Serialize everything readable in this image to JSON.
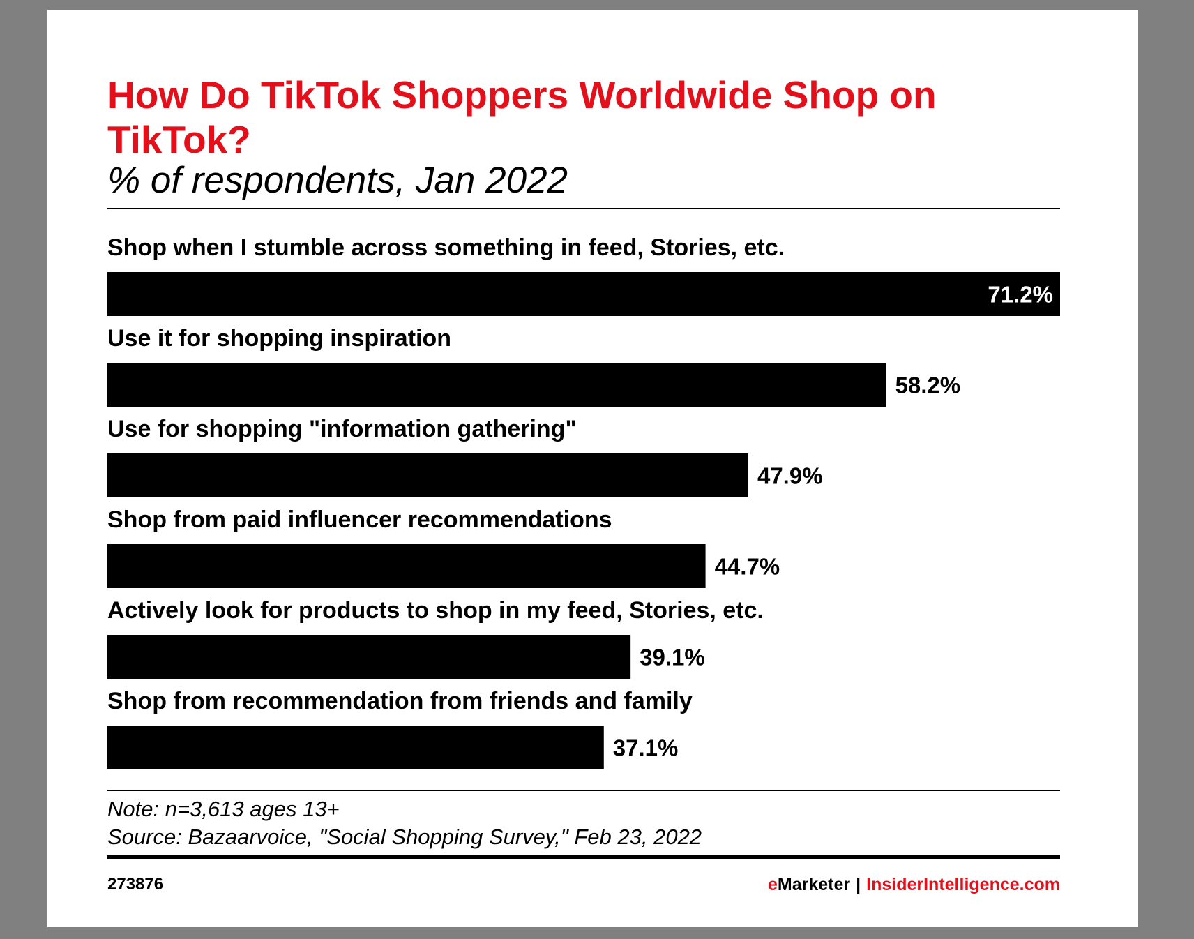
{
  "chart_data": {
    "type": "bar",
    "orientation": "horizontal",
    "title": "How Do TikTok Shoppers Worldwide Shop on TikTok?",
    "subtitle": "% of respondents, Jan 2022",
    "categories": [
      "Shop when I stumble across something in feed, Stories, etc.",
      "Use it for shopping inspiration",
      "Use for shopping \"information gathering\"",
      "Shop from paid influencer recommendations",
      "Actively look for products to shop in my feed, Stories, etc.",
      "Shop from recommendation from friends and family"
    ],
    "values": [
      71.2,
      58.2,
      47.9,
      44.7,
      39.1,
      37.1
    ],
    "value_labels": [
      "71.2%",
      "58.2%",
      "47.9%",
      "44.7%",
      "39.1%",
      "37.1%"
    ],
    "xlim": [
      0,
      71.2
    ],
    "bar_color": "#000000",
    "grid": false
  },
  "footer": {
    "note": "Note: n=3,613 ages 13+",
    "source": "Source: Bazaarvoice, \"Social Shopping Survey,\" Feb 23, 2022",
    "chart_id": "273876",
    "brand_e": "e",
    "brand_marketer": "Marketer",
    "brand_sep": "|",
    "brand_site": "InsiderIntelligence.com"
  },
  "colors": {
    "accent": "#e3101b",
    "text": "#000000",
    "background": "#ffffff",
    "frame": "#808080"
  }
}
